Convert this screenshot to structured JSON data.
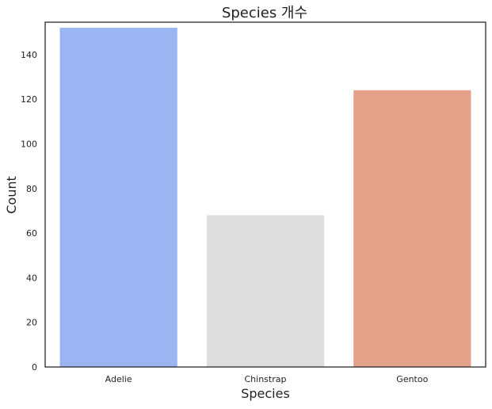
{
  "chart_data": {
    "type": "bar",
    "title": "Species 개수",
    "xlabel": "Species",
    "ylabel": "Count",
    "categories": [
      "Adelie",
      "Chinstrap",
      "Gentoo"
    ],
    "values": [
      152,
      68,
      124
    ],
    "colors": [
      "#9ab5f2",
      "#dddddd",
      "#e4a189"
    ],
    "ylim": [
      0,
      154.5
    ],
    "yticks": [
      0,
      20,
      40,
      60,
      80,
      100,
      120,
      140
    ],
    "ytick_labels": [
      "0",
      "20",
      "40",
      "60",
      "80",
      "100",
      "120",
      "140"
    ],
    "grid": false,
    "legend": "none",
    "axis_color": "#222222",
    "background": "#ffffff"
  }
}
